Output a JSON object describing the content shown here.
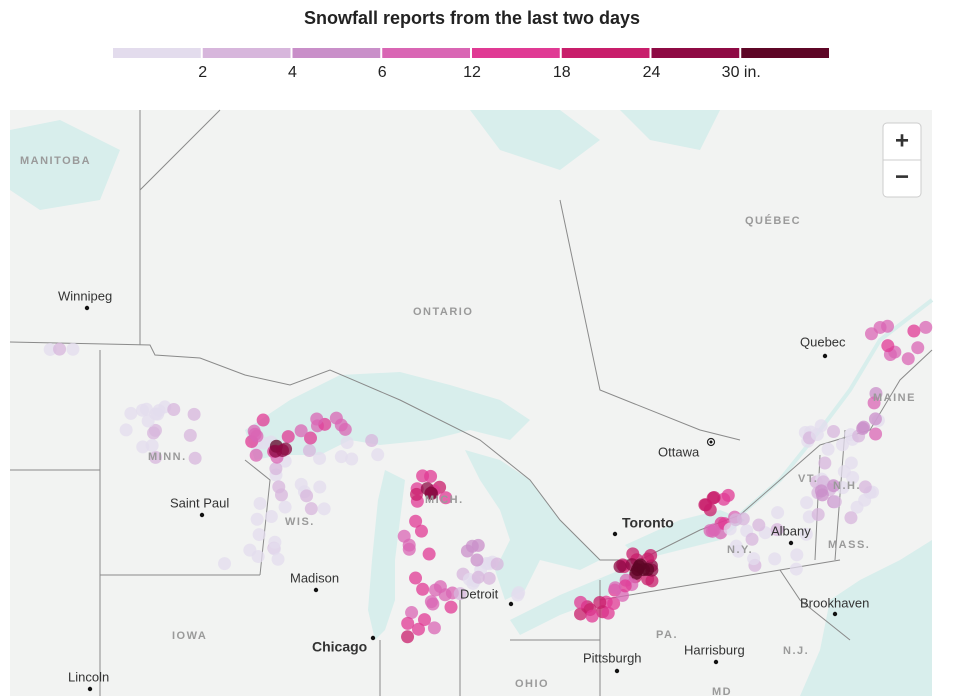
{
  "header": {
    "title": "Snowfall reports from the last two days"
  },
  "legend": {
    "colors": [
      "#e3dced",
      "#d7b6dc",
      "#c98fc9",
      "#d966b4",
      "#e03a94",
      "#c81e6b",
      "#8e0a44",
      "#5e0626"
    ],
    "labels": [
      "2",
      "4",
      "6",
      "12",
      "18",
      "24",
      "30 in."
    ]
  },
  "controls": {
    "zoom_in": "+",
    "zoom_out": "−"
  },
  "places": [
    {
      "label": "MANITOBA",
      "kind": "region"
    },
    {
      "label": "Winnipeg",
      "kind": "city"
    },
    {
      "label": "ONTARIO",
      "kind": "region"
    },
    {
      "label": "QUÉBEC",
      "kind": "region"
    },
    {
      "label": "Quebec",
      "kind": "city"
    },
    {
      "label": "MAINE",
      "kind": "region"
    },
    {
      "label": "MINN.",
      "kind": "region"
    },
    {
      "label": "Saint Paul",
      "kind": "city"
    },
    {
      "label": "WIS.",
      "kind": "region"
    },
    {
      "label": "Madison",
      "kind": "city"
    },
    {
      "label": "MICH.",
      "kind": "region"
    },
    {
      "label": "Ottawa",
      "kind": "capital"
    },
    {
      "label": "Toronto",
      "kind": "major"
    },
    {
      "label": "N.Y.",
      "kind": "region"
    },
    {
      "label": "VT.",
      "kind": "region"
    },
    {
      "label": "N.H.",
      "kind": "region"
    },
    {
      "label": "Albany",
      "kind": "city"
    },
    {
      "label": "MASS.",
      "kind": "region"
    },
    {
      "label": "Detroit",
      "kind": "city"
    },
    {
      "label": "Chicago",
      "kind": "major"
    },
    {
      "label": "IOWA",
      "kind": "region"
    },
    {
      "label": "Brookhaven",
      "kind": "city"
    },
    {
      "label": "PA.",
      "kind": "region"
    },
    {
      "label": "Pittsburgh",
      "kind": "city"
    },
    {
      "label": "Harrisburg",
      "kind": "city"
    },
    {
      "label": "N.J.",
      "kind": "region"
    },
    {
      "label": "Lincoln",
      "kind": "city"
    },
    {
      "label": "OHIO",
      "kind": "region"
    },
    {
      "label": "MD",
      "kind": "region"
    }
  ]
}
